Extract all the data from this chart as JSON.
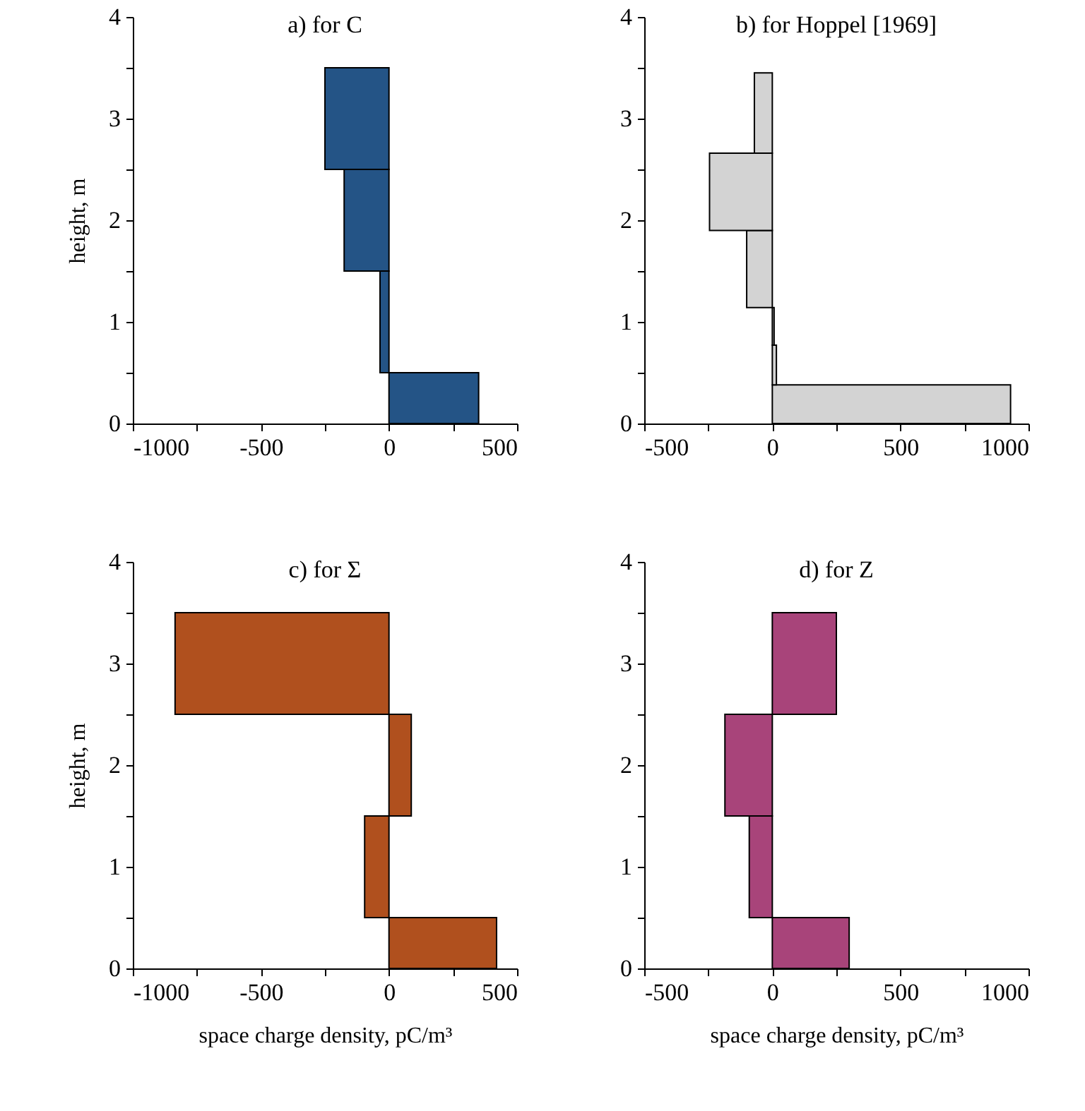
{
  "chart_data": [
    {
      "type": "histogram",
      "orientation": "horizontal",
      "title": "a) for C",
      "ylabel": "height, m",
      "bins": [
        0,
        0.5,
        1.5,
        2.5,
        3.5
      ],
      "values": [
        350,
        -35,
        -175,
        -250
      ],
      "color": "#245486",
      "xlim": [
        -1000,
        500
      ],
      "xticks": [
        -1000,
        {
          "value": -750,
          "label": null
        },
        -500,
        {
          "value": -250,
          "label": null
        },
        0,
        {
          "value": 250,
          "label": null
        },
        500
      ],
      "ylim": [
        0,
        4
      ],
      "yticks": [
        0,
        {
          "value": 0.5,
          "label": null
        },
        1,
        {
          "value": 1.5,
          "label": null
        },
        2,
        {
          "value": 2.5,
          "label": null
        },
        3,
        {
          "value": 3.5,
          "label": null
        },
        4
      ]
    },
    {
      "type": "histogram",
      "orientation": "horizontal",
      "title": "b) for Hoppel [1969]",
      "bins": [
        0,
        0.38,
        0.77,
        1.14,
        1.9,
        2.66,
        3.45
      ],
      "values": [
        930,
        16,
        7,
        -100,
        -245,
        -70
      ],
      "color": "#d3d3d3",
      "xlim": [
        -500,
        1000
      ],
      "xticks": [
        -500,
        {
          "value": -250,
          "label": null
        },
        0,
        {
          "value": 250,
          "label": null
        },
        500,
        {
          "value": 750,
          "label": null
        },
        1000
      ],
      "ylim": [
        0,
        4
      ],
      "yticks": [
        0,
        {
          "value": 0.5,
          "label": null
        },
        1,
        {
          "value": 1.5,
          "label": null
        },
        2,
        {
          "value": 2.5,
          "label": null
        },
        3,
        {
          "value": 3.5,
          "label": null
        },
        4
      ]
    },
    {
      "type": "histogram",
      "orientation": "horizontal",
      "title": "c) for Σ",
      "ylabel": "height, m",
      "xlabel": "space charge density, pC/m³",
      "bins": [
        0,
        0.5,
        1.5,
        2.5,
        3.5
      ],
      "values": [
        420,
        -95,
        87,
        -835
      ],
      "color": "#b0501e",
      "xlim": [
        -1000,
        500
      ],
      "xticks": [
        -1000,
        {
          "value": -750,
          "label": null
        },
        -500,
        {
          "value": -250,
          "label": null
        },
        0,
        {
          "value": 250,
          "label": null
        },
        500
      ],
      "ylim": [
        0,
        4
      ],
      "yticks": [
        0,
        {
          "value": 0.5,
          "label": null
        },
        1,
        {
          "value": 1.5,
          "label": null
        },
        2,
        {
          "value": 2.5,
          "label": null
        },
        3,
        {
          "value": 3.5,
          "label": null
        },
        4
      ]
    },
    {
      "type": "histogram",
      "orientation": "horizontal",
      "title": "d) for Z",
      "xlabel": "space charge density, pC/m³",
      "bins": [
        0,
        0.5,
        1.5,
        2.5,
        3.5
      ],
      "values": [
        300,
        -90,
        -185,
        250
      ],
      "color": "#a8447a",
      "xlim": [
        -500,
        1000
      ],
      "xticks": [
        -500,
        {
          "value": -250,
          "label": null
        },
        0,
        {
          "value": 250,
          "label": null
        },
        500,
        {
          "value": 750,
          "label": null
        },
        1000
      ],
      "ylim": [
        0,
        4
      ],
      "yticks": [
        0,
        {
          "value": 0.5,
          "label": null
        },
        1,
        {
          "value": 1.5,
          "label": null
        },
        2,
        {
          "value": 2.5,
          "label": null
        },
        3,
        {
          "value": 3.5,
          "label": null
        },
        4
      ]
    }
  ]
}
